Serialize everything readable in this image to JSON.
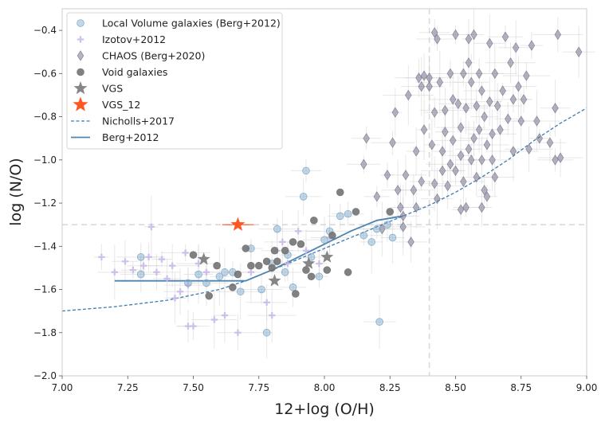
{
  "chart_data": {
    "type": "scatter",
    "xlabel": "12+log (O/H)",
    "ylabel": "log (N/O)",
    "xlim": [
      7.0,
      9.0
    ],
    "ylim": [
      -2.0,
      -0.3
    ],
    "xticks": [
      7.0,
      7.25,
      7.5,
      7.75,
      8.0,
      8.25,
      8.5,
      8.75,
      9.0
    ],
    "yticks": [
      -2.0,
      -1.8,
      -1.6,
      -1.4,
      -1.2,
      -1.0,
      -0.8,
      -0.6,
      -0.4
    ],
    "xtick_labels": [
      "7.00",
      "7.25",
      "7.50",
      "7.75",
      "8.00",
      "8.25",
      "8.50",
      "8.75",
      "9.00"
    ],
    "ytick_labels": [
      "−2.0",
      "−1.8",
      "−1.6",
      "−1.4",
      "−1.2",
      "−1.0",
      "−0.8",
      "−0.6",
      "−0.4"
    ],
    "grid": false,
    "legend_position": "top-left",
    "reference_lines": [
      {
        "orientation": "vertical",
        "value": 8.4,
        "style": "dashed",
        "color": "#d9d9d9"
      },
      {
        "orientation": "horizontal",
        "value": -1.3,
        "style": "dashed",
        "color": "#d9d9d9"
      }
    ],
    "series": [
      {
        "name": "Local Volume galaxies (Berg+2012)",
        "marker": "circle",
        "color": "#7ba7c9",
        "points": [
          [
            7.3,
            -1.45
          ],
          [
            7.3,
            -1.53
          ],
          [
            7.48,
            -1.57
          ],
          [
            7.52,
            -1.53
          ],
          [
            7.55,
            -1.57
          ],
          [
            7.6,
            -1.54
          ],
          [
            7.62,
            -1.52
          ],
          [
            7.65,
            -1.52
          ],
          [
            7.68,
            -1.61
          ],
          [
            7.72,
            -1.41
          ],
          [
            7.76,
            -1.6
          ],
          [
            7.78,
            -1.8
          ],
          [
            7.8,
            -1.48
          ],
          [
            7.82,
            -1.32
          ],
          [
            7.85,
            -1.52
          ],
          [
            7.86,
            -1.44
          ],
          [
            7.88,
            -1.59
          ],
          [
            7.92,
            -1.17
          ],
          [
            7.93,
            -1.05
          ],
          [
            7.95,
            -1.45
          ],
          [
            7.98,
            -1.54
          ],
          [
            8.0,
            -1.37
          ],
          [
            8.02,
            -1.33
          ],
          [
            8.06,
            -1.26
          ],
          [
            8.09,
            -1.25
          ],
          [
            8.15,
            -1.35
          ],
          [
            8.18,
            -1.38
          ],
          [
            8.2,
            -1.32
          ],
          [
            8.21,
            -1.75
          ],
          [
            8.24,
            -1.3
          ],
          [
            8.26,
            -1.36
          ]
        ]
      },
      {
        "name": "Izotov+2012",
        "marker": "plus",
        "color": "#c7b8ea",
        "points": [
          [
            7.15,
            -1.45
          ],
          [
            7.2,
            -1.52
          ],
          [
            7.24,
            -1.47
          ],
          [
            7.27,
            -1.51
          ],
          [
            7.31,
            -1.49
          ],
          [
            7.33,
            -1.45
          ],
          [
            7.34,
            -1.31
          ],
          [
            7.36,
            -1.52
          ],
          [
            7.38,
            -1.46
          ],
          [
            7.4,
            -1.55
          ],
          [
            7.42,
            -1.49
          ],
          [
            7.43,
            -1.64
          ],
          [
            7.45,
            -1.61
          ],
          [
            7.47,
            -1.43
          ],
          [
            7.48,
            -1.58
          ],
          [
            7.48,
            -1.77
          ],
          [
            7.5,
            -1.77
          ],
          [
            7.52,
            -1.48
          ],
          [
            7.55,
            -1.52
          ],
          [
            7.58,
            -1.74
          ],
          [
            7.62,
            -1.72
          ],
          [
            7.67,
            -1.8
          ],
          [
            7.72,
            -1.52
          ],
          [
            7.78,
            -1.66
          ],
          [
            7.8,
            -1.72
          ],
          [
            7.82,
            -1.42
          ],
          [
            7.84,
            -1.38
          ],
          [
            7.86,
            -1.48
          ],
          [
            7.9,
            -1.33
          ],
          [
            7.93,
            -1.42
          ],
          [
            7.98,
            -1.48
          ],
          [
            8.02,
            -1.36
          ]
        ]
      },
      {
        "name": "CHAOS (Berg+2020)",
        "marker": "diamond",
        "color": "#7a7890",
        "points": [
          [
            8.15,
            -1.02
          ],
          [
            8.16,
            -0.9
          ],
          [
            8.2,
            -1.17
          ],
          [
            8.22,
            -1.32
          ],
          [
            8.24,
            -1.07
          ],
          [
            8.26,
            -0.92
          ],
          [
            8.27,
            -0.78
          ],
          [
            8.28,
            -1.14
          ],
          [
            8.29,
            -1.22
          ],
          [
            8.3,
            -1.26
          ],
          [
            8.3,
            -1.31
          ],
          [
            8.31,
            -1.07
          ],
          [
            8.32,
            -0.7
          ],
          [
            8.33,
            -1.38
          ],
          [
            8.34,
            -1.14
          ],
          [
            8.35,
            -0.96
          ],
          [
            8.35,
            -1.22
          ],
          [
            8.36,
            -0.62
          ],
          [
            8.37,
            -1.1
          ],
          [
            8.37,
            -0.66
          ],
          [
            8.38,
            -0.86
          ],
          [
            8.38,
            -0.61
          ],
          [
            8.4,
            -0.66
          ],
          [
            8.4,
            -0.62
          ],
          [
            8.41,
            -0.93
          ],
          [
            8.42,
            -1.11
          ],
          [
            8.42,
            -0.78
          ],
          [
            8.43,
            -0.44
          ],
          [
            8.43,
            -1.18
          ],
          [
            8.44,
            -0.64
          ],
          [
            8.45,
            -0.96
          ],
          [
            8.45,
            -1.05
          ],
          [
            8.46,
            -0.77
          ],
          [
            8.46,
            -0.87
          ],
          [
            8.47,
            -1.12
          ],
          [
            8.48,
            -0.6
          ],
          [
            8.48,
            -1.02
          ],
          [
            8.49,
            -0.72
          ],
          [
            8.49,
            -0.91
          ],
          [
            8.5,
            -1.05
          ],
          [
            8.5,
            -0.42
          ],
          [
            8.51,
            -0.74
          ],
          [
            8.52,
            -0.98
          ],
          [
            8.52,
            -0.85
          ],
          [
            8.53,
            -0.6
          ],
          [
            8.53,
            -1.1
          ],
          [
            8.54,
            -0.76
          ],
          [
            8.54,
            -1.22
          ],
          [
            8.55,
            -0.55
          ],
          [
            8.55,
            -0.95
          ],
          [
            8.56,
            -0.64
          ],
          [
            8.56,
            -1.0
          ],
          [
            8.57,
            -0.42
          ],
          [
            8.57,
            -0.9
          ],
          [
            8.58,
            -0.75
          ],
          [
            8.58,
            -1.08
          ],
          [
            8.59,
            -0.6
          ],
          [
            8.59,
            -0.86
          ],
          [
            8.6,
            -1.0
          ],
          [
            8.6,
            -0.68
          ],
          [
            8.61,
            -1.14
          ],
          [
            8.61,
            -0.8
          ],
          [
            8.62,
            -0.93
          ],
          [
            8.62,
            -1.17
          ],
          [
            8.63,
            -0.73
          ],
          [
            8.63,
            -0.46
          ],
          [
            8.64,
            -0.88
          ],
          [
            8.64,
            -1.0
          ],
          [
            8.65,
            -0.6
          ],
          [
            8.65,
            -1.08
          ],
          [
            8.66,
            -0.75
          ],
          [
            8.67,
            -0.86
          ],
          [
            8.68,
            -0.68
          ],
          [
            8.69,
            -0.43
          ],
          [
            8.7,
            -0.81
          ],
          [
            8.71,
            -0.55
          ],
          [
            8.72,
            -0.72
          ],
          [
            8.72,
            -0.96
          ],
          [
            8.73,
            -0.48
          ],
          [
            8.74,
            -0.66
          ],
          [
            8.75,
            -0.82
          ],
          [
            8.76,
            -0.72
          ],
          [
            8.77,
            -0.61
          ],
          [
            8.78,
            -0.95
          ],
          [
            8.79,
            -0.47
          ],
          [
            8.81,
            -0.82
          ],
          [
            8.82,
            -0.9
          ],
          [
            8.86,
            -0.92
          ],
          [
            8.88,
            -0.76
          ],
          [
            8.88,
            -1.0
          ],
          [
            8.89,
            -0.42
          ],
          [
            8.9,
            -0.99
          ],
          [
            8.97,
            -0.5
          ],
          [
            8.42,
            -0.41
          ],
          [
            8.52,
            -1.23
          ],
          [
            8.6,
            -1.22
          ],
          [
            8.55,
            -0.44
          ]
        ]
      },
      {
        "name": "Void galaxies",
        "marker": "circle",
        "color": "#737373",
        "points": [
          [
            7.5,
            -1.44
          ],
          [
            7.56,
            -1.63
          ],
          [
            7.59,
            -1.49
          ],
          [
            7.65,
            -1.59
          ],
          [
            7.67,
            -1.53
          ],
          [
            7.7,
            -1.41
          ],
          [
            7.72,
            -1.49
          ],
          [
            7.75,
            -1.49
          ],
          [
            7.78,
            -1.47
          ],
          [
            7.8,
            -1.5
          ],
          [
            7.82,
            -1.47
          ],
          [
            7.85,
            -1.42
          ],
          [
            7.88,
            -1.38
          ],
          [
            7.89,
            -1.62
          ],
          [
            7.91,
            -1.39
          ],
          [
            7.93,
            -1.51
          ],
          [
            7.95,
            -1.54
          ],
          [
            7.96,
            -1.28
          ],
          [
            8.01,
            -1.51
          ],
          [
            8.03,
            -1.35
          ],
          [
            8.06,
            -1.15
          ],
          [
            8.09,
            -1.52
          ],
          [
            8.12,
            -1.24
          ],
          [
            8.25,
            -1.24
          ],
          [
            7.81,
            -1.42
          ]
        ]
      },
      {
        "name": "VGS",
        "marker": "star",
        "color": "#7f7f7f",
        "points": [
          [
            7.54,
            -1.46
          ],
          [
            7.81,
            -1.56
          ],
          [
            7.94,
            -1.48
          ],
          [
            8.01,
            -1.45
          ]
        ]
      },
      {
        "name": "VGS_12",
        "marker": "star",
        "color": "#ff5722",
        "points": [
          [
            7.67,
            -1.3
          ]
        ],
        "xerr": [
          [
            7.61,
            7.73
          ]
        ]
      },
      {
        "name": "Nicholls+2017",
        "marker": "dashed-line",
        "color": "#3d7ab2",
        "points": [
          [
            7.0,
            -1.7
          ],
          [
            7.2,
            -1.68
          ],
          [
            7.4,
            -1.65
          ],
          [
            7.6,
            -1.6
          ],
          [
            7.7,
            -1.56
          ],
          [
            7.8,
            -1.51
          ],
          [
            7.9,
            -1.46
          ],
          [
            8.0,
            -1.41
          ],
          [
            8.1,
            -1.36
          ],
          [
            8.2,
            -1.31
          ],
          [
            8.3,
            -1.26
          ],
          [
            8.4,
            -1.21
          ],
          [
            8.5,
            -1.15
          ],
          [
            8.6,
            -1.08
          ],
          [
            8.7,
            -1.0
          ],
          [
            8.8,
            -0.91
          ],
          [
            8.9,
            -0.83
          ],
          [
            9.0,
            -0.76
          ]
        ]
      },
      {
        "name": "Berg+2012",
        "marker": "solid-line",
        "color": "#4d84b0",
        "points": [
          [
            7.2,
            -1.56
          ],
          [
            7.7,
            -1.56
          ],
          [
            7.8,
            -1.51
          ],
          [
            7.9,
            -1.45
          ],
          [
            8.0,
            -1.39
          ],
          [
            8.1,
            -1.33
          ],
          [
            8.2,
            -1.28
          ],
          [
            8.3,
            -1.26
          ]
        ]
      }
    ]
  }
}
